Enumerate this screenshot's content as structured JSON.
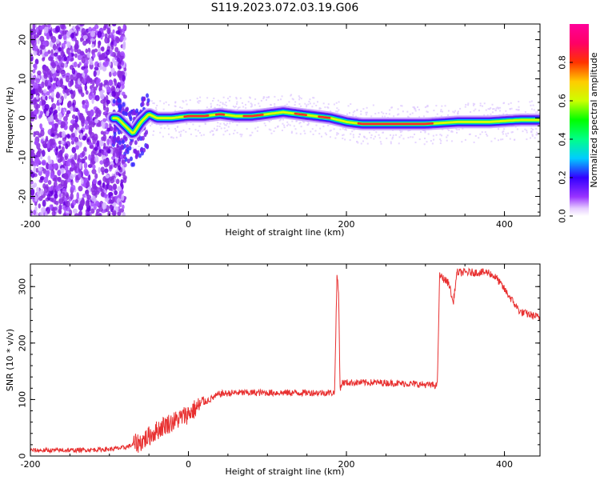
{
  "title": "S119.2023.072.03.19.G06",
  "chart_data": [
    {
      "type": "heatmap",
      "xlabel": "Height of straight line (km)",
      "ylabel": "Frequency (Hz)",
      "xlim": [
        -200,
        445
      ],
      "ylim": [
        -25,
        24
      ],
      "xticks": [
        -200,
        0,
        200,
        400
      ],
      "yticks": [
        -20,
        -10,
        0,
        10,
        20
      ],
      "grid": false,
      "colorbar": {
        "label": "Normalized spectral amplitude",
        "range": [
          0,
          1
        ],
        "ticks": [
          "0.0",
          "0.2",
          "0.4",
          "0.6",
          "0.8"
        ]
      },
      "ridge": {
        "x": [
          -90,
          -80,
          -70,
          -60,
          -50,
          -40,
          -20,
          0,
          20,
          40,
          60,
          80,
          100,
          120,
          140,
          160,
          180,
          200,
          220,
          260,
          300,
          340,
          380,
          420,
          445
        ],
        "y": [
          0,
          -2,
          -4,
          -1,
          1,
          0,
          0,
          0.5,
          0.5,
          1,
          0.5,
          0.5,
          1,
          1.5,
          1,
          0.5,
          0,
          -1,
          -1.5,
          -1.5,
          -1.5,
          -1,
          -1,
          -0.5,
          -0.5
        ]
      }
    },
    {
      "type": "line",
      "xlabel": "Height of straight line (km)",
      "ylabel": "SNR (10 * v/v)",
      "xlim": [
        -200,
        445
      ],
      "ylim": [
        0,
        340
      ],
      "xticks": [
        -200,
        0,
        200,
        400
      ],
      "yticks": [
        0,
        100,
        200,
        300
      ],
      "grid": false,
      "series": [
        {
          "color": "#e83030",
          "x": [
            -200,
            -150,
            -100,
            -80,
            -60,
            -40,
            -30,
            -20,
            0,
            20,
            40,
            60,
            100,
            150,
            185,
            188,
            190,
            192,
            195,
            240,
            280,
            315,
            318,
            330,
            335,
            340,
            380,
            390,
            400,
            420,
            445
          ],
          "y": [
            10,
            10,
            12,
            15,
            25,
            45,
            55,
            60,
            75,
            95,
            110,
            112,
            112,
            112,
            112,
            320,
            290,
            120,
            130,
            130,
            128,
            125,
            320,
            305,
            270,
            325,
            325,
            315,
            295,
            255,
            245
          ]
        }
      ]
    }
  ]
}
